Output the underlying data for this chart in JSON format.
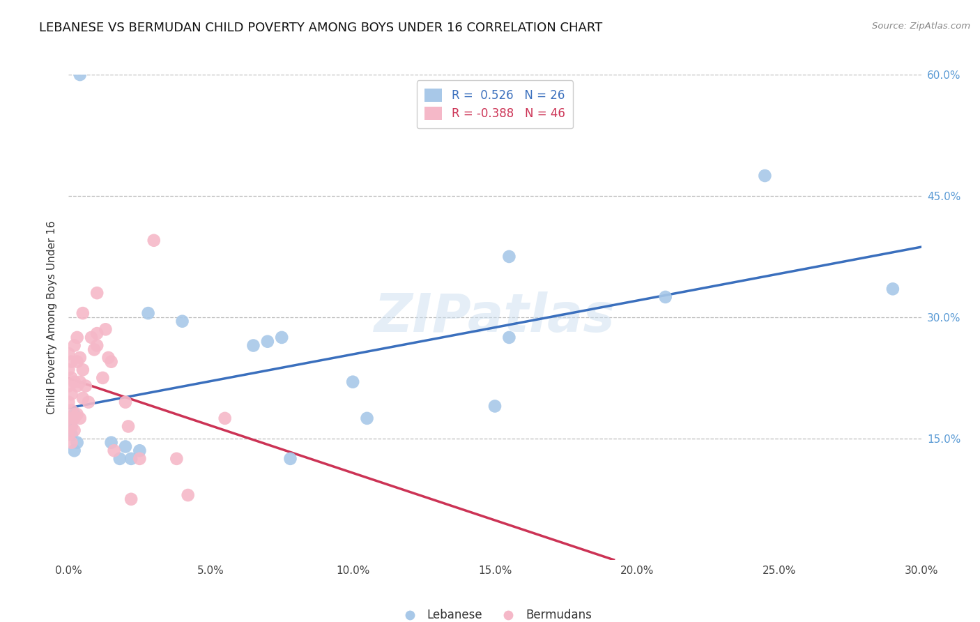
{
  "title": "LEBANESE VS BERMUDAN CHILD POVERTY AMONG BOYS UNDER 16 CORRELATION CHART",
  "source": "Source: ZipAtlas.com",
  "ylabel": "Child Poverty Among Boys Under 16",
  "watermark": "ZIPatlas",
  "xlim": [
    0.0,
    0.3
  ],
  "ylim": [
    0.0,
    0.6
  ],
  "xtick_labels": [
    "0.0%",
    "5.0%",
    "10.0%",
    "15.0%",
    "20.0%",
    "25.0%",
    "30.0%"
  ],
  "xtick_vals": [
    0.0,
    0.05,
    0.1,
    0.15,
    0.2,
    0.25,
    0.3
  ],
  "ytick_vals": [
    0.15,
    0.3,
    0.45,
    0.6
  ],
  "ytick_labels": [
    "15.0%",
    "30.0%",
    "45.0%",
    "60.0%"
  ],
  "legend_blue_label": "Lebanese",
  "legend_pink_label": "Bermudans",
  "R_blue": 0.526,
  "N_blue": 26,
  "R_pink": -0.388,
  "N_pink": 46,
  "blue_color": "#a8c8e8",
  "pink_color": "#f5b8c8",
  "blue_line_color": "#3a6fbd",
  "pink_line_color": "#cc3355",
  "grid_color": "#bbbbbb",
  "bg_color": "#ffffff",
  "lebanese_x": [
    0.001,
    0.001,
    0.001,
    0.002,
    0.002,
    0.003,
    0.004,
    0.015,
    0.018,
    0.02,
    0.022,
    0.025,
    0.028,
    0.04,
    0.065,
    0.07,
    0.075,
    0.078,
    0.1,
    0.105,
    0.15,
    0.155,
    0.155,
    0.21,
    0.245,
    0.29
  ],
  "lebanese_y": [
    0.175,
    0.165,
    0.155,
    0.18,
    0.135,
    0.145,
    0.6,
    0.145,
    0.125,
    0.14,
    0.125,
    0.135,
    0.305,
    0.295,
    0.265,
    0.27,
    0.275,
    0.125,
    0.22,
    0.175,
    0.19,
    0.375,
    0.275,
    0.325,
    0.475,
    0.335
  ],
  "bermudan_x": [
    0.0,
    0.0,
    0.0,
    0.0,
    0.0,
    0.0,
    0.001,
    0.001,
    0.001,
    0.001,
    0.001,
    0.001,
    0.002,
    0.002,
    0.002,
    0.002,
    0.003,
    0.003,
    0.003,
    0.003,
    0.004,
    0.004,
    0.004,
    0.005,
    0.005,
    0.005,
    0.006,
    0.007,
    0.008,
    0.009,
    0.01,
    0.01,
    0.01,
    0.012,
    0.013,
    0.014,
    0.015,
    0.016,
    0.02,
    0.021,
    0.022,
    0.025,
    0.03,
    0.038,
    0.042,
    0.055
  ],
  "bermudan_y": [
    0.155,
    0.175,
    0.195,
    0.215,
    0.235,
    0.255,
    0.145,
    0.165,
    0.185,
    0.205,
    0.225,
    0.245,
    0.16,
    0.175,
    0.22,
    0.265,
    0.18,
    0.215,
    0.245,
    0.275,
    0.175,
    0.22,
    0.25,
    0.2,
    0.235,
    0.305,
    0.215,
    0.195,
    0.275,
    0.26,
    0.265,
    0.28,
    0.33,
    0.225,
    0.285,
    0.25,
    0.245,
    0.135,
    0.195,
    0.165,
    0.075,
    0.125,
    0.395,
    0.125,
    0.08,
    0.175
  ]
}
